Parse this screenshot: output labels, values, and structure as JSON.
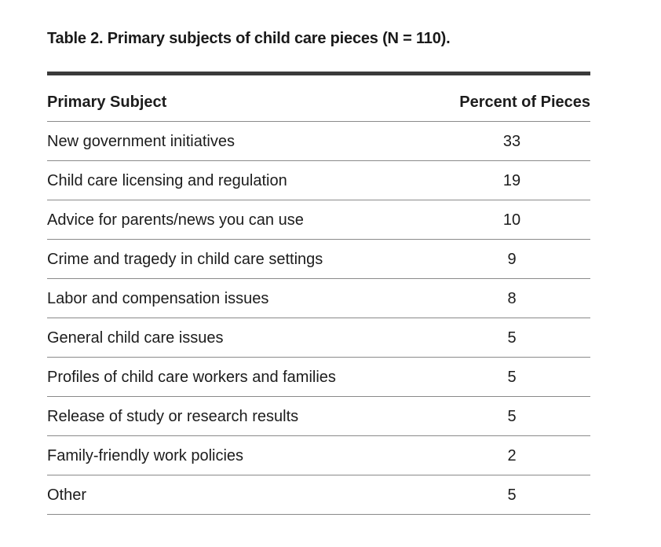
{
  "caption": "Table 2.  Primary subjects of child care pieces (N = 110).",
  "table": {
    "headers": {
      "subject": "Primary Subject",
      "percent": "Percent of Pieces"
    },
    "rows": [
      {
        "subject": "New government initiatives",
        "percent": "33"
      },
      {
        "subject": "Child care licensing and regulation",
        "percent": "19"
      },
      {
        "subject": "Advice for parents/news you can use",
        "percent": "10"
      },
      {
        "subject": "Crime and tragedy in child care settings",
        "percent": "9"
      },
      {
        "subject": "Labor and compensation issues",
        "percent": "8"
      },
      {
        "subject": "General child care issues",
        "percent": "5"
      },
      {
        "subject": "Profiles of child care workers and families",
        "percent": "5"
      },
      {
        "subject": "Release of study or research results",
        "percent": "5"
      },
      {
        "subject": "Family-friendly work policies",
        "percent": "2"
      },
      {
        "subject": "Other",
        "percent": "5"
      }
    ]
  }
}
